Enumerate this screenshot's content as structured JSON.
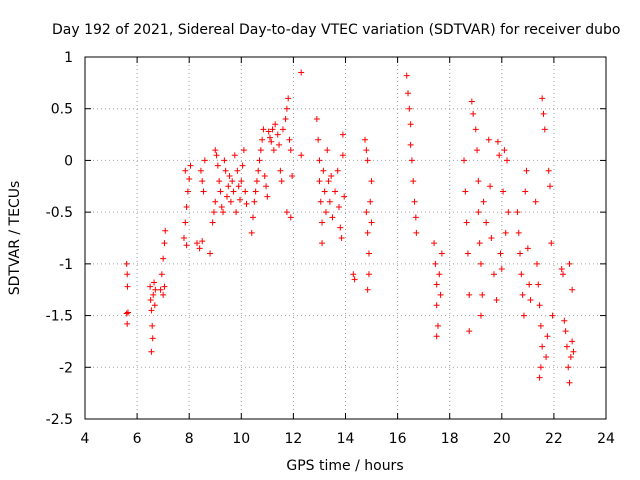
{
  "chart_data": {
    "type": "scatter",
    "title": "Day 192 of 2021, Sidereal Day-to-day VTEC variation (SDTVAR) for receiver dubo",
    "xlabel": "GPS time / hours",
    "ylabel": "SDTVAR / TECUs",
    "xlim": [
      4,
      24
    ],
    "ylim": [
      -2.5,
      1
    ],
    "x_ticks": [
      4,
      6,
      8,
      10,
      12,
      14,
      16,
      18,
      20,
      22,
      24
    ],
    "y_ticks": [
      -2.5,
      -2,
      -1.5,
      -1,
      -0.5,
      0,
      0.5,
      1
    ],
    "x_tick_labels": [
      "4",
      "6",
      "8",
      "10",
      "12",
      "14",
      "16",
      "18",
      "20",
      "22",
      "24"
    ],
    "y_tick_labels": [
      "-2.5",
      "-2",
      "-1.5",
      "-1",
      "-0.5",
      "0",
      "0.5",
      "1"
    ],
    "grid": true,
    "marker": "+",
    "marker_color": "#ff0000",
    "series": [
      {
        "name": "SDTVAR",
        "points": [
          [
            5.6,
            -1.0
          ],
          [
            5.62,
            -1.1
          ],
          [
            5.63,
            -1.22
          ],
          [
            5.6,
            -1.48
          ],
          [
            5.62,
            -1.58
          ],
          [
            5.65,
            -1.47
          ],
          [
            6.5,
            -1.22
          ],
          [
            6.52,
            -1.35
          ],
          [
            6.55,
            -1.45
          ],
          [
            6.58,
            -1.6
          ],
          [
            6.6,
            -1.72
          ],
          [
            6.55,
            -1.85
          ],
          [
            6.62,
            -1.3
          ],
          [
            6.65,
            -1.18
          ],
          [
            6.7,
            -1.25
          ],
          [
            6.68,
            -1.4
          ],
          [
            6.9,
            -1.25
          ],
          [
            6.95,
            -1.1
          ],
          [
            7.0,
            -0.95
          ],
          [
            7.05,
            -0.8
          ],
          [
            7.08,
            -0.68
          ],
          [
            7.0,
            -1.3
          ],
          [
            7.05,
            -1.22
          ],
          [
            7.8,
            -0.75
          ],
          [
            7.85,
            -0.6
          ],
          [
            7.9,
            -0.45
          ],
          [
            7.95,
            -0.3
          ],
          [
            8.0,
            -0.18
          ],
          [
            8.05,
            -0.05
          ],
          [
            7.9,
            -0.82
          ],
          [
            7.85,
            -0.1
          ],
          [
            8.3,
            -0.8
          ],
          [
            8.4,
            -0.85
          ],
          [
            8.5,
            -0.78
          ],
          [
            8.45,
            -0.1
          ],
          [
            8.5,
            -0.2
          ],
          [
            8.55,
            -0.3
          ],
          [
            8.6,
            0.0
          ],
          [
            8.8,
            -0.9
          ],
          [
            8.9,
            -0.6
          ],
          [
            8.95,
            -0.5
          ],
          [
            9.0,
            -0.4
          ],
          [
            9.0,
            0.1
          ],
          [
            9.05,
            0.05
          ],
          [
            9.1,
            -0.05
          ],
          [
            9.15,
            -0.2
          ],
          [
            9.2,
            -0.3
          ],
          [
            9.25,
            -0.45
          ],
          [
            9.3,
            -0.5
          ],
          [
            9.35,
            0.0
          ],
          [
            9.4,
            -0.1
          ],
          [
            9.45,
            -0.35
          ],
          [
            9.5,
            -0.25
          ],
          [
            9.55,
            -0.15
          ],
          [
            9.6,
            -0.4
          ],
          [
            9.65,
            -0.2
          ],
          [
            9.7,
            -0.3
          ],
          [
            9.75,
            0.05
          ],
          [
            9.8,
            -0.5
          ],
          [
            9.85,
            -0.1
          ],
          [
            9.9,
            -0.25
          ],
          [
            9.95,
            -0.38
          ],
          [
            10.0,
            -0.2
          ],
          [
            10.05,
            -0.05
          ],
          [
            10.1,
            0.1
          ],
          [
            10.15,
            -0.3
          ],
          [
            10.2,
            -0.42
          ],
          [
            10.4,
            -0.7
          ],
          [
            10.45,
            -0.55
          ],
          [
            10.5,
            -0.4
          ],
          [
            10.55,
            -0.3
          ],
          [
            10.6,
            -0.2
          ],
          [
            10.65,
            -0.1
          ],
          [
            10.7,
            0.0
          ],
          [
            10.75,
            0.1
          ],
          [
            10.8,
            0.2
          ],
          [
            10.85,
            0.3
          ],
          [
            10.9,
            -0.15
          ],
          [
            10.95,
            -0.25
          ],
          [
            11.0,
            -0.35
          ],
          [
            11.05,
            0.28
          ],
          [
            11.1,
            0.22
          ],
          [
            11.15,
            0.18
          ],
          [
            11.2,
            0.3
          ],
          [
            11.25,
            0.1
          ],
          [
            11.3,
            0.35
          ],
          [
            11.4,
            0.25
          ],
          [
            11.45,
            0.15
          ],
          [
            11.5,
            -0.1
          ],
          [
            11.55,
            -0.2
          ],
          [
            11.6,
            0.3
          ],
          [
            11.7,
            0.4
          ],
          [
            11.75,
            0.5
          ],
          [
            11.8,
            0.6
          ],
          [
            11.85,
            0.2
          ],
          [
            11.9,
            0.1
          ],
          [
            11.95,
            -0.15
          ],
          [
            11.9,
            -0.55
          ],
          [
            11.75,
            -0.5
          ],
          [
            12.3,
            0.85
          ],
          [
            12.3,
            0.05
          ],
          [
            12.9,
            0.4
          ],
          [
            12.95,
            0.2
          ],
          [
            13.0,
            0.0
          ],
          [
            13.0,
            -0.2
          ],
          [
            13.05,
            -0.4
          ],
          [
            13.1,
            -0.6
          ],
          [
            13.1,
            -0.8
          ],
          [
            13.15,
            -0.1
          ],
          [
            13.2,
            -0.3
          ],
          [
            13.25,
            -0.5
          ],
          [
            13.3,
            0.1
          ],
          [
            13.35,
            -0.2
          ],
          [
            13.4,
            -0.4
          ],
          [
            13.45,
            -0.15
          ],
          [
            13.5,
            -0.55
          ],
          [
            13.6,
            -0.3
          ],
          [
            13.7,
            -0.1
          ],
          [
            13.75,
            -0.45
          ],
          [
            13.8,
            -0.65
          ],
          [
            13.85,
            -0.75
          ],
          [
            13.9,
            0.25
          ],
          [
            13.9,
            0.05
          ],
          [
            13.95,
            -0.35
          ],
          [
            14.3,
            -1.1
          ],
          [
            14.35,
            -1.15
          ],
          [
            14.75,
            0.2
          ],
          [
            14.8,
            0.1
          ],
          [
            14.85,
            0.0
          ],
          [
            14.8,
            -0.5
          ],
          [
            14.85,
            -0.7
          ],
          [
            14.9,
            -0.9
          ],
          [
            14.9,
            -1.1
          ],
          [
            14.85,
            -1.25
          ],
          [
            14.95,
            -0.4
          ],
          [
            15.0,
            -0.2
          ],
          [
            15.0,
            -0.6
          ],
          [
            16.35,
            0.82
          ],
          [
            16.4,
            0.65
          ],
          [
            16.45,
            0.5
          ],
          [
            16.5,
            0.35
          ],
          [
            16.5,
            0.15
          ],
          [
            16.55,
            0.0
          ],
          [
            16.6,
            -0.2
          ],
          [
            16.65,
            -0.4
          ],
          [
            16.7,
            -0.55
          ],
          [
            16.72,
            -0.7
          ],
          [
            17.4,
            -0.8
          ],
          [
            17.45,
            -1.0
          ],
          [
            17.5,
            -1.2
          ],
          [
            17.5,
            -1.4
          ],
          [
            17.55,
            -1.6
          ],
          [
            17.5,
            -1.7
          ],
          [
            17.6,
            -1.1
          ],
          [
            17.65,
            -1.3
          ],
          [
            17.7,
            -0.9
          ],
          [
            18.55,
            0.0
          ],
          [
            18.6,
            -0.3
          ],
          [
            18.65,
            -0.6
          ],
          [
            18.7,
            -0.9
          ],
          [
            18.75,
            -1.3
          ],
          [
            18.75,
            -1.65
          ],
          [
            18.85,
            0.57
          ],
          [
            18.9,
            0.45
          ],
          [
            19.0,
            0.3
          ],
          [
            19.05,
            0.1
          ],
          [
            19.1,
            -0.2
          ],
          [
            19.1,
            -0.5
          ],
          [
            19.15,
            -0.8
          ],
          [
            19.2,
            -1.0
          ],
          [
            19.25,
            -1.3
          ],
          [
            19.2,
            -1.5
          ],
          [
            19.3,
            -0.4
          ],
          [
            19.4,
            -0.6
          ],
          [
            19.5,
            0.2
          ],
          [
            19.55,
            -0.25
          ],
          [
            19.6,
            -0.75
          ],
          [
            19.7,
            -1.1
          ],
          [
            19.8,
            -1.35
          ],
          [
            19.85,
            0.18
          ],
          [
            19.9,
            0.05
          ],
          [
            19.95,
            -0.9
          ],
          [
            20.0,
            -1.05
          ],
          [
            20.05,
            -0.3
          ],
          [
            20.1,
            0.1
          ],
          [
            20.15,
            -0.7
          ],
          [
            20.2,
            0.0
          ],
          [
            20.25,
            -0.5
          ],
          [
            20.6,
            -0.5
          ],
          [
            20.65,
            -0.7
          ],
          [
            20.7,
            -0.9
          ],
          [
            20.75,
            -1.1
          ],
          [
            20.8,
            -1.3
          ],
          [
            20.85,
            -1.5
          ],
          [
            20.9,
            -0.3
          ],
          [
            20.95,
            -0.1
          ],
          [
            21.0,
            -0.85
          ],
          [
            21.05,
            -1.2
          ],
          [
            21.1,
            -1.35
          ],
          [
            21.3,
            -0.4
          ],
          [
            21.35,
            -1.0
          ],
          [
            21.4,
            -1.2
          ],
          [
            21.45,
            -1.4
          ],
          [
            21.5,
            -1.6
          ],
          [
            21.55,
            -1.8
          ],
          [
            21.5,
            -2.0
          ],
          [
            21.45,
            -2.1
          ],
          [
            21.55,
            0.6
          ],
          [
            21.6,
            0.45
          ],
          [
            21.65,
            0.3
          ],
          [
            21.7,
            -1.9
          ],
          [
            21.75,
            -1.7
          ],
          [
            21.8,
            -0.1
          ],
          [
            21.85,
            -0.25
          ],
          [
            21.9,
            -0.8
          ],
          [
            21.95,
            -1.5
          ],
          [
            22.3,
            -1.05
          ],
          [
            22.35,
            -1.1
          ],
          [
            22.4,
            -1.55
          ],
          [
            22.45,
            -1.65
          ],
          [
            22.5,
            -1.8
          ],
          [
            22.55,
            -2.0
          ],
          [
            22.6,
            -2.15
          ],
          [
            22.65,
            -1.9
          ],
          [
            22.7,
            -1.75
          ],
          [
            22.6,
            -1.0
          ],
          [
            22.7,
            -1.25
          ],
          [
            22.75,
            -1.85
          ]
        ]
      }
    ]
  }
}
